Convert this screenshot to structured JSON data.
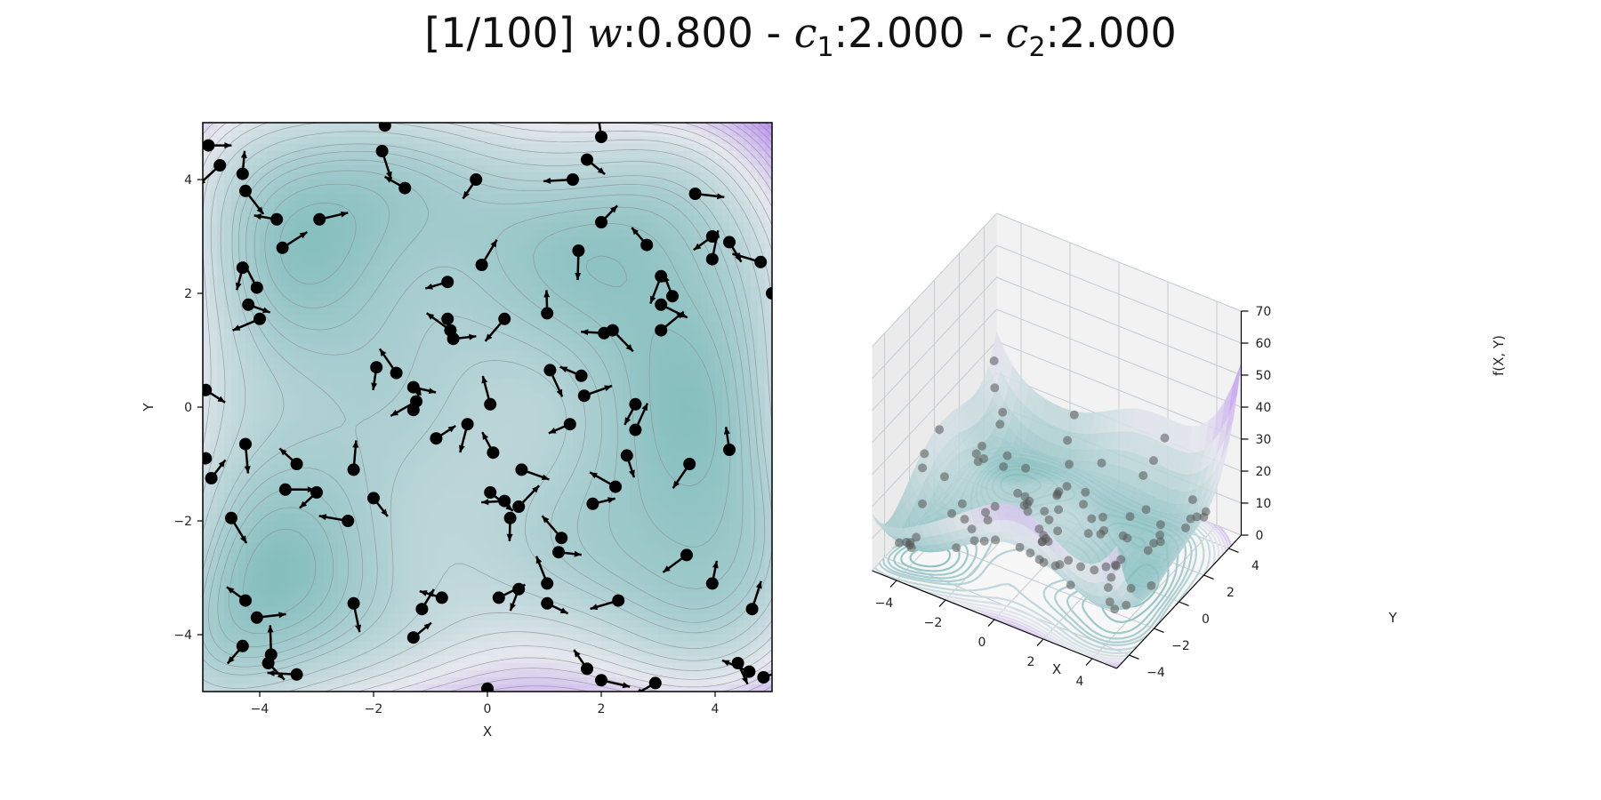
{
  "title": {
    "prefix": "[1/100] ",
    "w_sym": "w",
    "w_val": ":0.800 - ",
    "c1_sym": "c",
    "c1_sub": "1",
    "c1_val": ":2.000 - ",
    "c2_sym": "c",
    "c2_sub": "2",
    "c2_val": ":2.000"
  },
  "chart_data": [
    {
      "type": "contour",
      "xlabel": "X",
      "ylabel": "Y",
      "xlim": [
        -5,
        5
      ],
      "ylim": [
        -5,
        5
      ],
      "xticks": [
        -4,
        -2,
        0,
        2,
        4
      ],
      "yticks": [
        -4,
        -2,
        0,
        2,
        4
      ],
      "colormap": {
        "low": "#6bb3b1",
        "mid": "#e6e8ee",
        "high": "#a25ff0"
      },
      "contour_levels": [
        0,
        70
      ],
      "particles": [
        [
          -4.9,
          4.6
        ],
        [
          -4.7,
          4.25
        ],
        [
          -4.3,
          4.1
        ],
        [
          -4.25,
          3.8
        ],
        [
          -3.7,
          3.3
        ],
        [
          -3.6,
          2.8
        ],
        [
          -4.3,
          2.45
        ],
        [
          -4.05,
          2.1
        ],
        [
          -4.2,
          1.8
        ],
        [
          -4.0,
          1.55
        ],
        [
          -1.8,
          4.95
        ],
        [
          -1.85,
          4.5
        ],
        [
          -1.45,
          3.85
        ],
        [
          -2.95,
          3.3
        ],
        [
          -0.2,
          4.0
        ],
        [
          2.0,
          4.75
        ],
        [
          1.75,
          4.35
        ],
        [
          1.5,
          4.0
        ],
        [
          2.0,
          3.25
        ],
        [
          1.6,
          2.75
        ],
        [
          2.8,
          2.85
        ],
        [
          3.65,
          3.75
        ],
        [
          3.95,
          3.0
        ],
        [
          3.95,
          2.6
        ],
        [
          4.25,
          2.9
        ],
        [
          4.8,
          2.55
        ],
        [
          5.0,
          2.0
        ],
        [
          3.05,
          2.3
        ],
        [
          3.25,
          1.95
        ],
        [
          3.05,
          1.8
        ],
        [
          -0.7,
          2.2
        ],
        [
          -0.1,
          2.5
        ],
        [
          -0.7,
          1.55
        ],
        [
          -0.65,
          1.35
        ],
        [
          -0.6,
          1.2
        ],
        [
          0.3,
          1.55
        ],
        [
          1.05,
          1.65
        ],
        [
          2.2,
          1.35
        ],
        [
          2.05,
          1.3
        ],
        [
          3.05,
          1.35
        ],
        [
          -1.95,
          0.7
        ],
        [
          -1.6,
          0.6
        ],
        [
          -1.3,
          0.35
        ],
        [
          -1.25,
          0.1
        ],
        [
          -1.3,
          -0.05
        ],
        [
          1.1,
          0.65
        ],
        [
          1.65,
          0.55
        ],
        [
          1.7,
          0.2
        ],
        [
          2.6,
          0.05
        ],
        [
          0.05,
          0.05
        ],
        [
          -4.95,
          0.3
        ],
        [
          -4.95,
          -0.9
        ],
        [
          -4.85,
          -1.25
        ],
        [
          -4.25,
          -0.65
        ],
        [
          -3.35,
          -1.0
        ],
        [
          -3.55,
          -1.45
        ],
        [
          -3.0,
          -1.5
        ],
        [
          -2.35,
          -1.1
        ],
        [
          -2.0,
          -1.6
        ],
        [
          -2.45,
          -2.0
        ],
        [
          -0.9,
          -0.55
        ],
        [
          -0.35,
          -0.3
        ],
        [
          0.1,
          -0.8
        ],
        [
          0.6,
          -1.1
        ],
        [
          1.45,
          -0.3
        ],
        [
          2.6,
          -0.4
        ],
        [
          2.45,
          -0.85
        ],
        [
          2.25,
          -1.4
        ],
        [
          1.85,
          -1.7
        ],
        [
          3.55,
          -1.0
        ],
        [
          4.25,
          -0.75
        ],
        [
          0.05,
          -1.5
        ],
        [
          0.3,
          -1.65
        ],
        [
          0.55,
          -1.75
        ],
        [
          0.4,
          -1.95
        ],
        [
          1.3,
          -2.3
        ],
        [
          1.25,
          -2.55
        ],
        [
          3.5,
          -2.6
        ],
        [
          3.95,
          -3.1
        ],
        [
          -4.5,
          -1.95
        ],
        [
          -0.8,
          -3.35
        ],
        [
          0.2,
          -3.35
        ],
        [
          0.55,
          -3.2
        ],
        [
          1.05,
          -3.1
        ],
        [
          1.05,
          -3.45
        ],
        [
          2.3,
          -3.4
        ],
        [
          -1.15,
          -3.55
        ],
        [
          -2.35,
          -3.45
        ],
        [
          -4.25,
          -3.4
        ],
        [
          -4.05,
          -3.7
        ],
        [
          -4.3,
          -4.2
        ],
        [
          -3.8,
          -4.35
        ],
        [
          -3.85,
          -4.5
        ],
        [
          -3.35,
          -4.7
        ],
        [
          -1.3,
          -4.05
        ],
        [
          0.0,
          -4.95
        ],
        [
          1.75,
          -4.6
        ],
        [
          2.0,
          -4.8
        ],
        [
          2.95,
          -4.85
        ],
        [
          4.65,
          -3.55
        ],
        [
          4.4,
          -4.5
        ],
        [
          4.6,
          -4.65
        ],
        [
          4.85,
          -4.75
        ]
      ]
    },
    {
      "type": "surface3d",
      "xlabel": "X",
      "ylabel": "Y",
      "zlabel": "f(X, Y)",
      "xticks": [
        -4,
        -2,
        0,
        2,
        4
      ],
      "yticks": [
        -4,
        -2,
        0,
        2,
        4
      ],
      "zticks": [
        0,
        10,
        20,
        30,
        40,
        50,
        60,
        70
      ],
      "zlim": [
        0,
        70
      ],
      "grid": true
    }
  ]
}
